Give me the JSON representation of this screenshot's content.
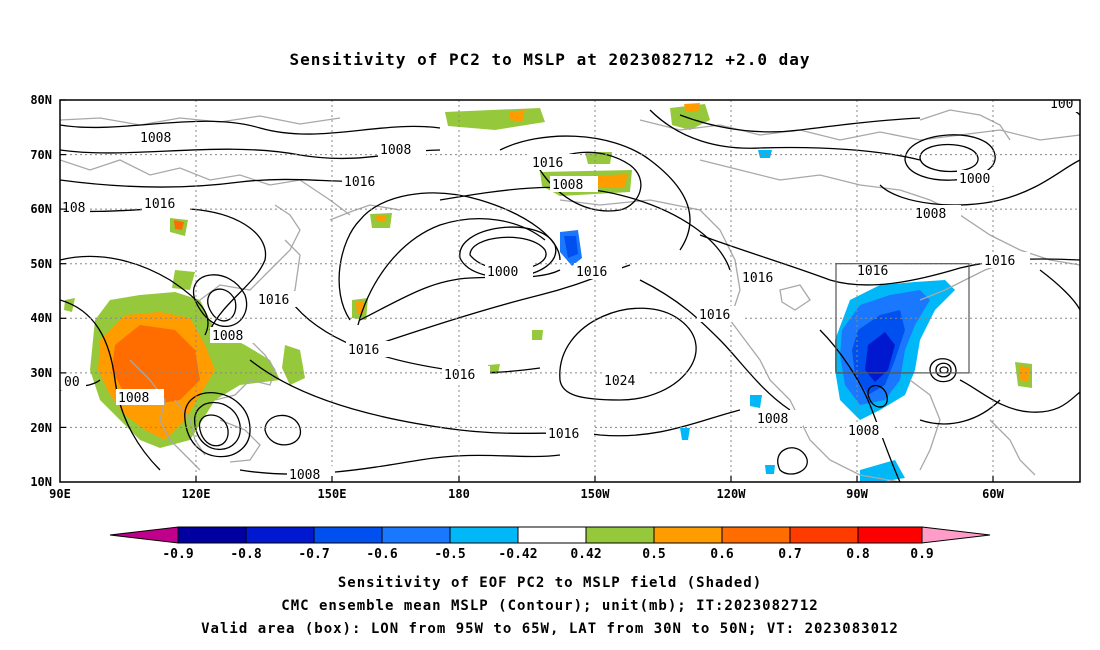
{
  "title": "Sensitivity of PC2 to MSLP at 2023082712 +2.0 day",
  "map": {
    "x_ticks": [
      "90E",
      "120E",
      "150E",
      "180",
      "150W",
      "120W",
      "90W",
      "60W"
    ],
    "y_ticks": [
      "80N",
      "70N",
      "60N",
      "50N",
      "40N",
      "30N",
      "20N",
      "10N"
    ],
    "contour_labels": [
      "1008",
      "1008",
      "1016",
      "1016",
      "1008",
      "1016",
      "1008",
      "1000",
      "1016",
      "1016",
      "1008",
      "1016",
      "1016",
      "1024",
      "1016",
      "1016",
      "1008",
      "1008",
      "1016",
      "1008",
      "1000",
      "1008",
      "1016",
      "1016",
      "00",
      "108",
      "100"
    ],
    "valid_box": {
      "lon_from": "95W",
      "lon_to": "65W",
      "lat_from": "30N",
      "lat_to": "50N"
    },
    "colors": {
      "land_outline": "#a8a8a8",
      "contour": "#000000",
      "grid": "#888888"
    }
  },
  "colorbar": {
    "labels": [
      "-0.9",
      "-0.8",
      "-0.7",
      "-0.6",
      "-0.5",
      "-0.42",
      "0.42",
      "0.5",
      "0.6",
      "0.7",
      "0.8",
      "0.9"
    ],
    "colors": [
      "#c0008a",
      "#0000a0",
      "#0018d0",
      "#0050f0",
      "#1a78ff",
      "#00b8f8",
      "#ffffff",
      "#96c83c",
      "#ff9c00",
      "#ff6c00",
      "#ff3c00",
      "#ff0000",
      "#ff9cc8"
    ]
  },
  "captions": {
    "line1": "Sensitivity of EOF PC2 to MSLP field (Shaded)",
    "line2": "CMC ensemble mean MSLP (Contour); unit(mb); IT:2023082712",
    "line3": "Valid area (box): LON from 95W to 65W, LAT from 30N to 50N; VT: 2023083012"
  }
}
